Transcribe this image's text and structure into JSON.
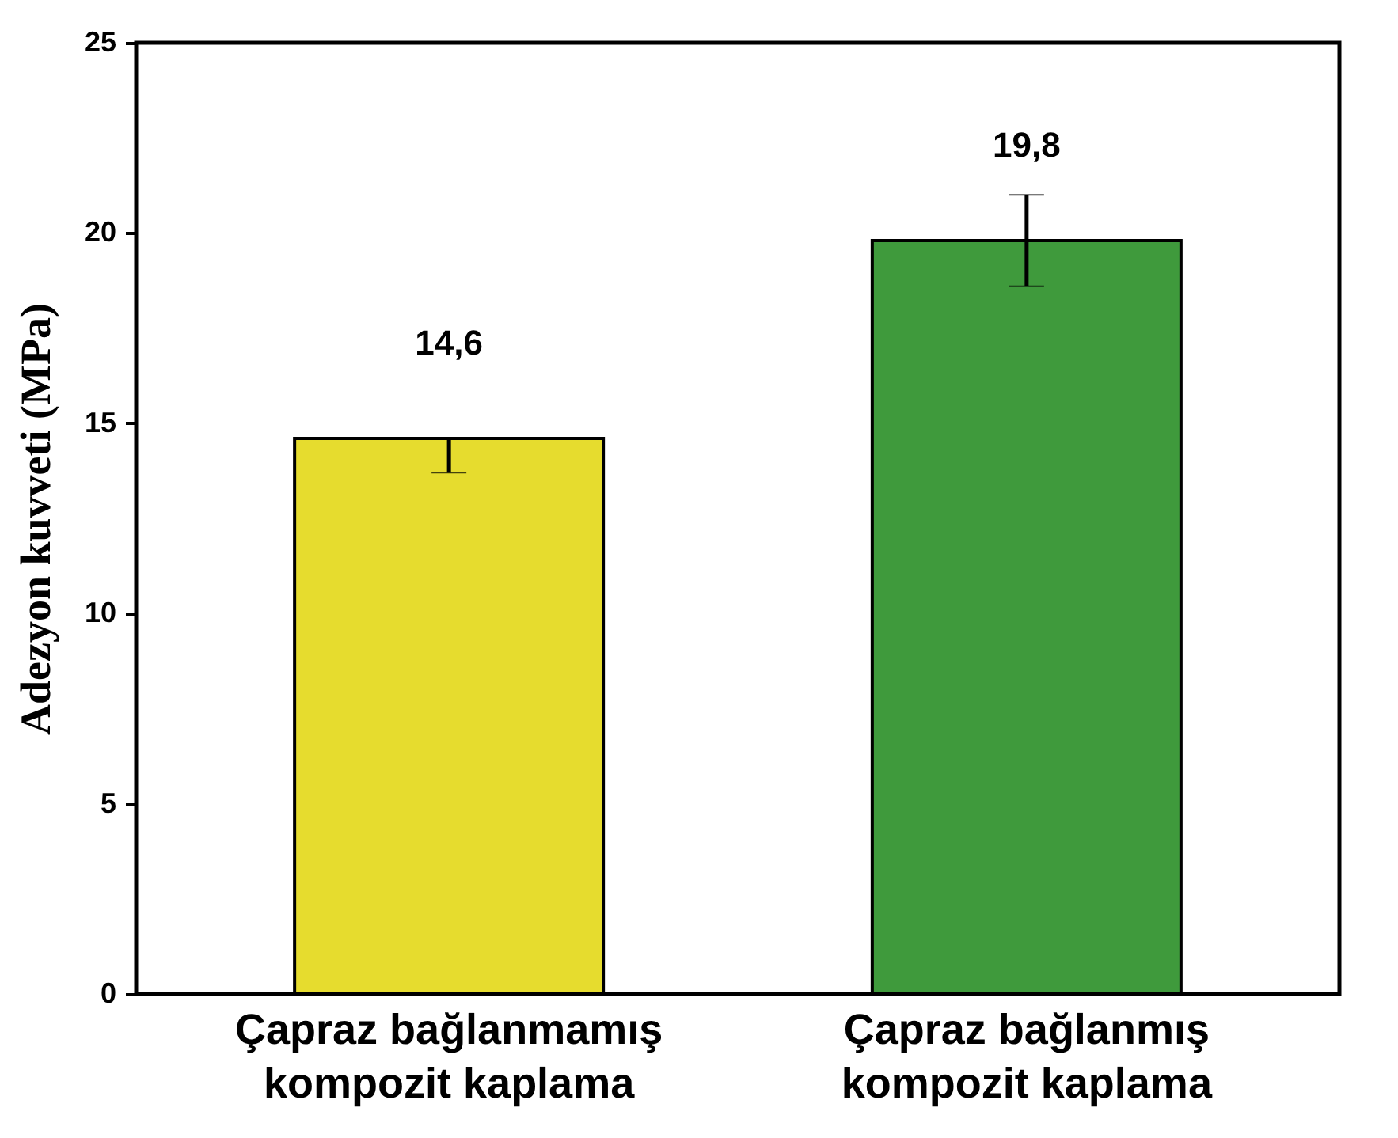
{
  "chart_data": {
    "type": "bar",
    "ylabel": "Adezyon kuvveti (MPa)",
    "categories": [
      "Çapraz bağlanmamış kompozit kaplama",
      "Çapraz bağlanmış kompozit kaplama"
    ],
    "values": [
      14.6,
      19.8
    ],
    "colors": [
      "#e6dc2e",
      "#3f9a3c"
    ],
    "errors": [
      [
        13.7,
        14.6
      ],
      [
        18.6,
        21.0
      ]
    ],
    "value_labels": [
      "14,6",
      "19,8"
    ],
    "ylim": [
      0,
      25
    ],
    "yticks": [
      0,
      5,
      10,
      15,
      20,
      25
    ],
    "grid": false,
    "legend": false
  }
}
